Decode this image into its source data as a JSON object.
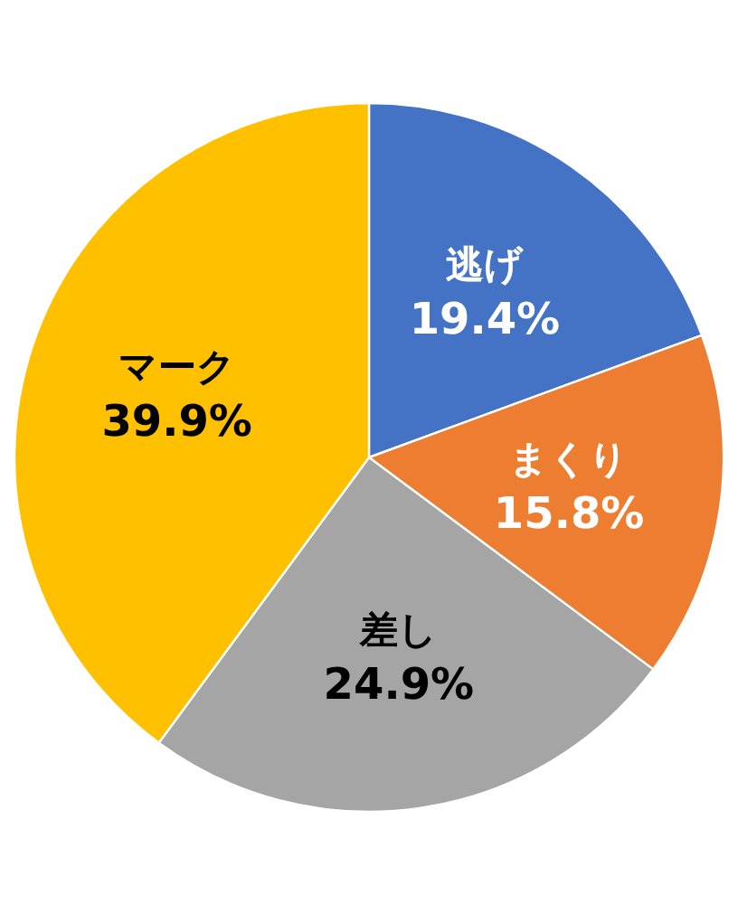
{
  "chart_data": {
    "type": "pie",
    "categories": [
      "逃げ",
      "まくり",
      "差し",
      "マーク"
    ],
    "values": [
      19.4,
      15.8,
      24.9,
      39.9
    ],
    "colors": [
      "#4472c4",
      "#ed7d31",
      "#a5a5a5",
      "#ffc000"
    ],
    "value_labels": [
      "19.4%",
      "15.8%",
      "24.9%",
      "39.9%"
    ]
  }
}
